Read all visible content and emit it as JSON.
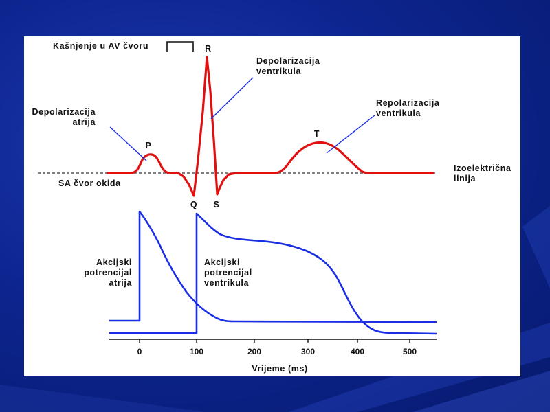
{
  "diagram": {
    "labels": {
      "av_delay": "Kašnjenje u AV čvoru",
      "r_wave": "R",
      "depol_vent_1": "Depolarizacija",
      "depol_vent_2": "ventrikula",
      "depol_atr_1": "Depolarizacija",
      "depol_atr_2": "atrija",
      "p_wave": "P",
      "t_wave": "T",
      "repol_vent_1": "Repolarizacija",
      "repol_vent_2": "ventrikula",
      "isoelectric_1": "Izoelektrična",
      "isoelectric_2": "linija",
      "sa_node": "SA čvor okida",
      "q_wave": "Q",
      "s_wave": "S",
      "ap_atria_1": "Akcijski",
      "ap_atria_2": "potrencijal",
      "ap_atria_3": "atrija",
      "ap_vent_1": "Akcijski",
      "ap_vent_2": "potrencijal",
      "ap_vent_3": "ventrikula"
    },
    "x_axis": {
      "label": "Vrijeme (ms)",
      "ticks": [
        "0",
        "100",
        "200",
        "300",
        "400",
        "500"
      ]
    },
    "colors": {
      "ecg": "#e01010",
      "action_potential": "#1a2ee6",
      "pointer": "#1a2ee6",
      "background": "#0d2590"
    }
  }
}
